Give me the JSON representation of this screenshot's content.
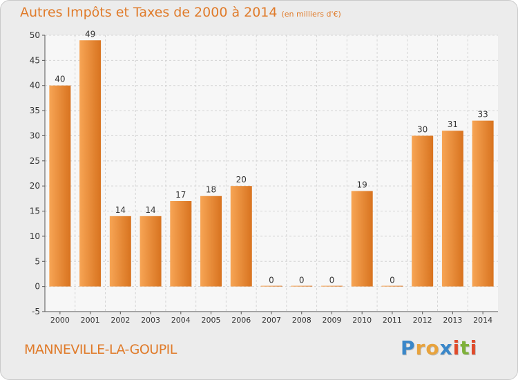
{
  "title": "Autres Impôts et Taxes de 2000 à 2014",
  "subtitle": "(en milliers d'€)",
  "commune": "MANNEVILLE-LA-GOUPIL",
  "brand": {
    "letters": [
      "P",
      "r",
      "o",
      "x",
      "i",
      "t",
      "i"
    ],
    "colors": [
      "#3a87c9",
      "#e8a33d",
      "#e8a33d",
      "#3a87c9",
      "#e04a2a",
      "#7fb13a",
      "#e04a2a"
    ]
  },
  "colors": {
    "bar_light": "#f7a555",
    "bar_dark": "#d8731f",
    "title": "#e07b2a",
    "plot_bg": "#f7f7f7",
    "grid": "#d4d4d4"
  },
  "chart_data": {
    "type": "bar",
    "title": "Autres Impôts et Taxes de 2000 à 2014",
    "subtitle": "(en milliers d'€)",
    "categories": [
      "2000",
      "2001",
      "2002",
      "2003",
      "2004",
      "2005",
      "2006",
      "2007",
      "2008",
      "2009",
      "2010",
      "2011",
      "2012",
      "2013",
      "2014"
    ],
    "values": [
      40,
      49,
      14,
      14,
      17,
      18,
      20,
      0,
      0,
      0,
      19,
      0,
      30,
      31,
      33
    ],
    "ylim": [
      -5,
      50
    ],
    "yticks": [
      -5,
      0,
      5,
      10,
      15,
      20,
      25,
      30,
      35,
      40,
      45,
      50
    ],
    "xlabel": "",
    "ylabel": "",
    "grid": true,
    "legend": "none"
  }
}
